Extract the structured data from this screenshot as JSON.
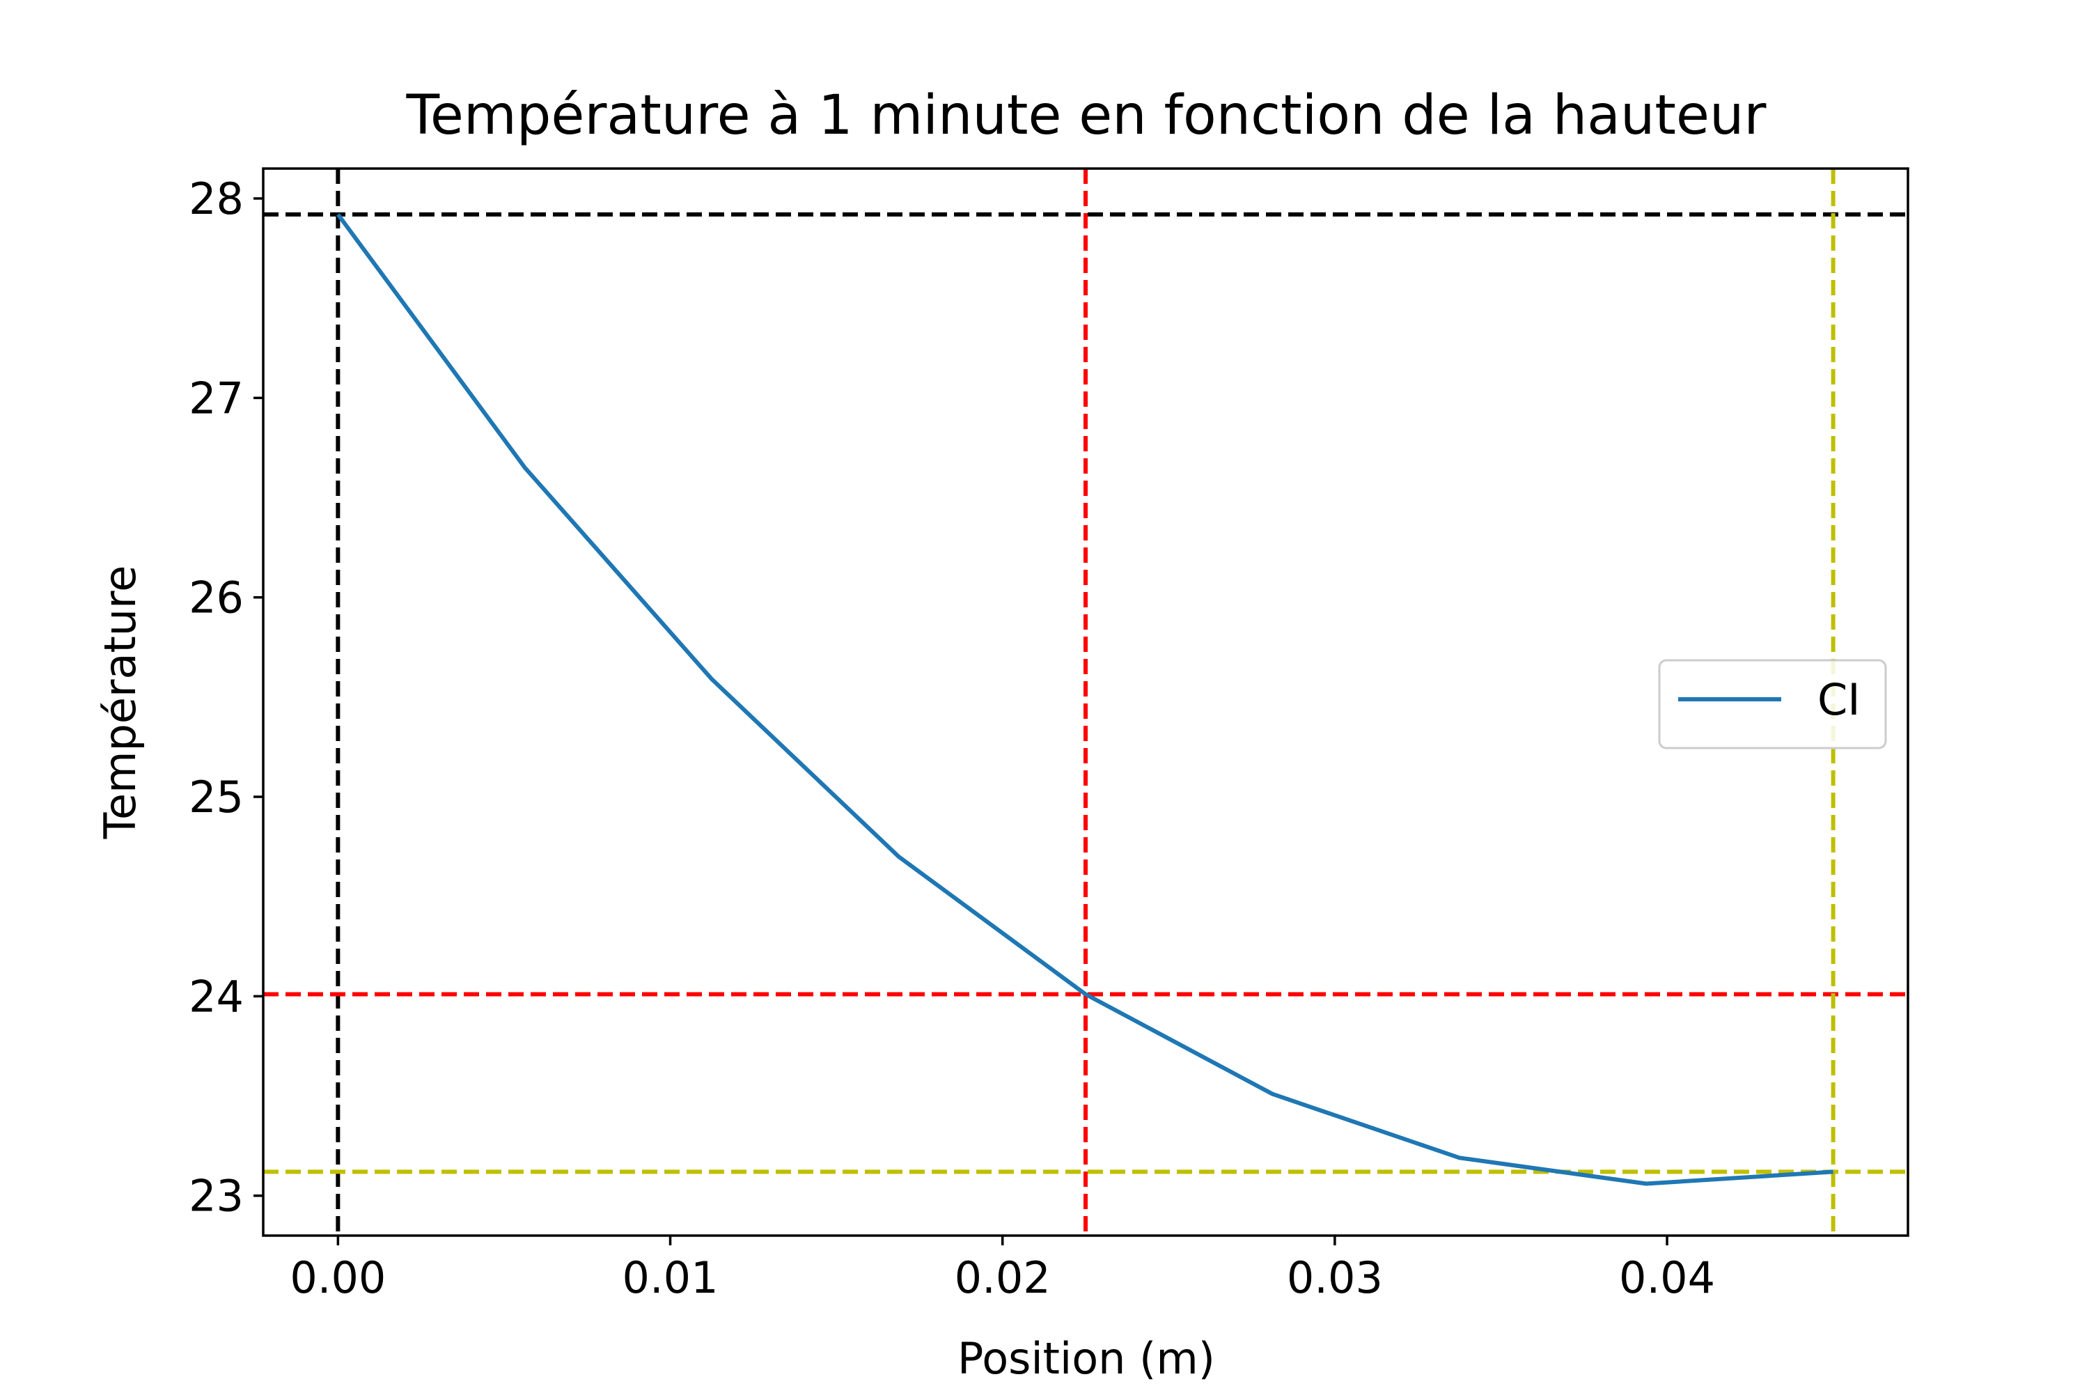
{
  "chart_data": {
    "type": "line",
    "title": "Température à 1 minute en fonction de la hauteur",
    "xlabel": "Position (m)",
    "ylabel": "Température",
    "xlim": [
      -0.00225,
      0.04725
    ],
    "ylim": [
      22.8,
      28.15
    ],
    "xticks": [
      0.0,
      0.01,
      0.02,
      0.03,
      0.04
    ],
    "xtick_labels": [
      "0.00",
      "0.01",
      "0.02",
      "0.03",
      "0.04"
    ],
    "yticks": [
      23,
      24,
      25,
      26,
      27,
      28
    ],
    "ytick_labels": [
      "23",
      "24",
      "25",
      "26",
      "27",
      "28"
    ],
    "grid": false,
    "legend_position": "center-right",
    "series": [
      {
        "name": "CI",
        "color": "#1f77b4",
        "x": [
          0.0,
          0.005625,
          0.01125,
          0.016875,
          0.0225,
          0.028125,
          0.03375,
          0.039375,
          0.045
        ],
        "y": [
          27.92,
          26.65,
          25.59,
          24.7,
          24.01,
          23.51,
          23.19,
          23.06,
          23.12
        ]
      }
    ],
    "reference_lines": [
      {
        "orientation": "horizontal",
        "value": 27.92,
        "color": "#000000",
        "style": "dashed"
      },
      {
        "orientation": "vertical",
        "value": 0.0,
        "color": "#000000",
        "style": "dashed"
      },
      {
        "orientation": "horizontal",
        "value": 24.01,
        "color": "#ff0000",
        "style": "dashed"
      },
      {
        "orientation": "vertical",
        "value": 0.0225,
        "color": "#ff0000",
        "style": "dashed"
      },
      {
        "orientation": "horizontal",
        "value": 23.12,
        "color": "#bfbf00",
        "style": "dashed"
      },
      {
        "orientation": "vertical",
        "value": 0.045,
        "color": "#bfbf00",
        "style": "dashed"
      }
    ]
  }
}
